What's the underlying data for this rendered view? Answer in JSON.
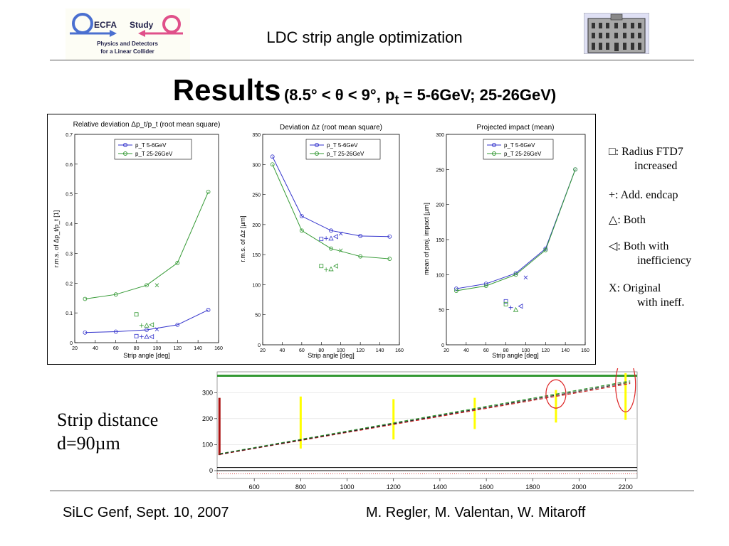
{
  "header": {
    "logo_left": {
      "line1": "ECFA",
      "line2": "Study",
      "line3": "Physics and Detectors",
      "line4": "for a Linear Collider"
    },
    "title": "LDC strip angle optimization"
  },
  "results": {
    "title": "Results",
    "subtitle_pre": "(8.5° < θ < 9°, p",
    "subtitle_sub": "t",
    "subtitle_post": " = 5-6GeV; 25-26GeV)"
  },
  "side_legend": [
    {
      "symbol": "□",
      "text1": ":  Radius FTD7",
      "text2": "increased"
    },
    {
      "symbol": "+",
      "text1": ":    Add. endcap",
      "text2": ""
    },
    {
      "symbol": "△",
      "text1": ":  Both",
      "text2": ""
    },
    {
      "symbol": "◁",
      "text1": ":   Both with",
      "text2": "inefficiency"
    },
    {
      "symbol": "X",
      "text1": ":    Original",
      "text2": "with ineff."
    }
  ],
  "strip_label": {
    "line1": "Strip distance",
    "line2": "d=90µm"
  },
  "footer": {
    "left": "SiLC Genf, Sept. 10, 2007",
    "right": "M. Regler, M. Valentan, W. Mitaroff"
  },
  "colors": {
    "blue": "#3333cc",
    "green": "#339933",
    "red": "#cc2222",
    "yellow": "#ffff00"
  },
  "chart_data": [
    {
      "type": "line",
      "title": "Relative deviation Δp_t/p_t (root mean square)",
      "xlabel": "Strip angle [deg]",
      "ylabel": "r.m.s. of Δp_t/p_t [1]",
      "xlim": [
        20,
        160
      ],
      "ylim": [
        0,
        0.7
      ],
      "xticks": [
        20,
        40,
        60,
        80,
        100,
        120,
        140,
        160
      ],
      "yticks": [
        0,
        0.1,
        0.2,
        0.3,
        0.4,
        0.5,
        0.6,
        0.7
      ],
      "legend_position": "top-center",
      "x": [
        30,
        60,
        90,
        120,
        150
      ],
      "series": [
        {
          "name": "p_T 5-6GeV",
          "color": "blue",
          "values": [
            0.034,
            0.037,
            0.043,
            0.06,
            0.11
          ]
        },
        {
          "name": "p_T 25-26GeV",
          "color": "green",
          "values": [
            0.147,
            0.162,
            0.193,
            0.268,
            0.507
          ]
        }
      ],
      "markers": [
        {
          "symbol": "square",
          "color": "green",
          "x": 80,
          "y": 0.095
        },
        {
          "symbol": "plus",
          "color": "green",
          "x": 85,
          "y": 0.058
        },
        {
          "symbol": "triangle",
          "color": "green",
          "x": 90,
          "y": 0.058
        },
        {
          "symbol": "tri-left",
          "color": "green",
          "x": 95,
          "y": 0.06
        },
        {
          "symbol": "x",
          "color": "green",
          "x": 100,
          "y": 0.193
        },
        {
          "symbol": "square",
          "color": "blue",
          "x": 80,
          "y": 0.022
        },
        {
          "symbol": "plus",
          "color": "blue",
          "x": 85,
          "y": 0.02
        },
        {
          "symbol": "triangle",
          "color": "blue",
          "x": 90,
          "y": 0.02
        },
        {
          "symbol": "tri-left",
          "color": "blue",
          "x": 95,
          "y": 0.02
        },
        {
          "symbol": "x",
          "color": "blue",
          "x": 100,
          "y": 0.045
        }
      ]
    },
    {
      "type": "line",
      "title": "Deviation Δz (root mean square)",
      "xlabel": "Strip angle [deg]",
      "ylabel": "r.m.s. of Δz [µm]",
      "xlim": [
        20,
        160
      ],
      "ylim": [
        0,
        350
      ],
      "xticks": [
        20,
        40,
        60,
        80,
        100,
        120,
        140,
        160
      ],
      "yticks": [
        0,
        50,
        100,
        150,
        200,
        250,
        300,
        350
      ],
      "legend_position": "top-center",
      "x": [
        30,
        60,
        90,
        120,
        150
      ],
      "series": [
        {
          "name": "p_T 5-6GeV",
          "color": "blue",
          "values": [
            313,
            214,
            190,
            181,
            180
          ]
        },
        {
          "name": "p_T 25-26GeV",
          "color": "green",
          "values": [
            300,
            190,
            160,
            147,
            143
          ]
        }
      ],
      "markers": [
        {
          "symbol": "square",
          "color": "blue",
          "x": 80,
          "y": 176
        },
        {
          "symbol": "plus",
          "color": "blue",
          "x": 85,
          "y": 177
        },
        {
          "symbol": "triangle",
          "color": "blue",
          "x": 90,
          "y": 177
        },
        {
          "symbol": "tri-left",
          "color": "blue",
          "x": 95,
          "y": 180
        },
        {
          "symbol": "x",
          "color": "blue",
          "x": 100,
          "y": 185
        },
        {
          "symbol": "square",
          "color": "green",
          "x": 80,
          "y": 131
        },
        {
          "symbol": "plus",
          "color": "green",
          "x": 85,
          "y": 125
        },
        {
          "symbol": "triangle",
          "color": "green",
          "x": 90,
          "y": 126
        },
        {
          "symbol": "tri-left",
          "color": "green",
          "x": 95,
          "y": 131
        },
        {
          "symbol": "x",
          "color": "green",
          "x": 100,
          "y": 157
        }
      ]
    },
    {
      "type": "line",
      "title": "Projected impact (mean)",
      "xlabel": "Strip angle [deg]",
      "ylabel": "mean of proj. impact [µm]",
      "xlim": [
        20,
        160
      ],
      "ylim": [
        0,
        300
      ],
      "xticks": [
        20,
        40,
        60,
        80,
        100,
        120,
        140,
        160
      ],
      "yticks": [
        0,
        50,
        100,
        150,
        200,
        250,
        300
      ],
      "legend_position": "top-center",
      "x": [
        30,
        60,
        90,
        120,
        150
      ],
      "series": [
        {
          "name": "p_T 5-6GeV",
          "color": "blue",
          "values": [
            80,
            87,
            102,
            137,
            250
          ]
        },
        {
          "name": "p_T 25-26GeV",
          "color": "green",
          "values": [
            77,
            84,
            100,
            135,
            250
          ]
        }
      ],
      "markers": [
        {
          "symbol": "square",
          "color": "blue",
          "x": 80,
          "y": 62
        },
        {
          "symbol": "square",
          "color": "green",
          "x": 80,
          "y": 58
        },
        {
          "symbol": "plus",
          "color": "blue",
          "x": 85,
          "y": 53
        },
        {
          "symbol": "triangle",
          "color": "green",
          "x": 90,
          "y": 50
        },
        {
          "symbol": "tri-left",
          "color": "blue",
          "x": 95,
          "y": 55
        },
        {
          "symbol": "x",
          "color": "blue",
          "x": 100,
          "y": 96
        }
      ]
    },
    {
      "type": "line",
      "xlim": [
        440,
        2250
      ],
      "ylim": [
        -30,
        380
      ],
      "xticks": [
        600,
        800,
        1000,
        1200,
        1400,
        1600,
        1800,
        2000,
        2200
      ],
      "yticks": [
        0,
        100,
        200,
        300
      ],
      "horizontal_lines": [
        {
          "color": "green",
          "y": 365
        },
        {
          "color": "black",
          "y": 12
        },
        {
          "color": "black",
          "y": 0
        }
      ],
      "series": [
        {
          "color": "green",
          "style": "dashed",
          "x": [
            450,
            2220
          ],
          "values": [
            65,
            345
          ]
        },
        {
          "color": "red",
          "style": "dashed",
          "x": [
            450,
            2220
          ],
          "values": [
            62,
            335
          ]
        },
        {
          "color": "black",
          "style": "dashed",
          "x": [
            450,
            2220
          ],
          "values": [
            63,
            340
          ]
        }
      ],
      "error_bars": [
        {
          "color": "red",
          "x": 450,
          "low": 60,
          "high": 280
        },
        {
          "color": "yellow",
          "x": 800,
          "low": 85,
          "high": 285
        },
        {
          "color": "yellow",
          "x": 1200,
          "low": 120,
          "high": 275
        },
        {
          "color": "yellow",
          "x": 1550,
          "low": 160,
          "high": 280
        },
        {
          "color": "yellow",
          "x": 1900,
          "low": 185,
          "high": 310
        },
        {
          "color": "yellow",
          "x": 2200,
          "low": 195,
          "high": 375
        }
      ],
      "highlight_ellipses": [
        {
          "color": "red",
          "x": 1900,
          "y": 295
        },
        {
          "color": "red",
          "x": 2200,
          "y": 330
        }
      ]
    }
  ]
}
